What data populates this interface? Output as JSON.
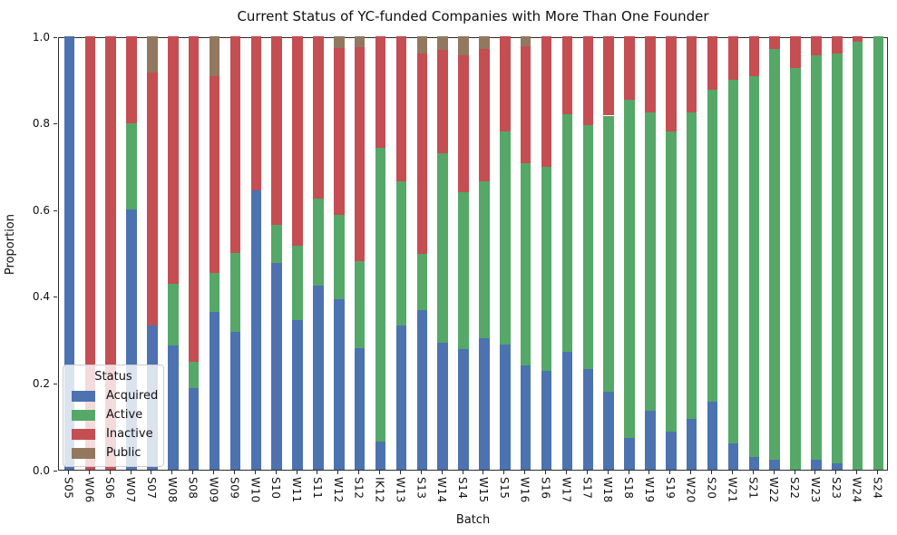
{
  "chart_data": {
    "type": "bar",
    "stacked": true,
    "normalized": true,
    "grid": false,
    "title": "Current Status of YC-funded Companies with More Than One Founder",
    "xlabel": "Batch",
    "ylabel": "Proportion",
    "ylim": [
      0,
      1.0
    ],
    "yticks": [
      0.0,
      0.2,
      0.4,
      0.6,
      0.8,
      1.0
    ],
    "legend": {
      "title": "Status",
      "position": "lower-left",
      "entries": [
        {
          "label": "Acquired",
          "color": "#4C72B0"
        },
        {
          "label": "Active",
          "color": "#55A868"
        },
        {
          "label": "Inactive",
          "color": "#C44E52"
        },
        {
          "label": "Public",
          "color": "#937860"
        }
      ]
    },
    "categories": [
      "S05",
      "W06",
      "S06",
      "W07",
      "S07",
      "W08",
      "S08",
      "W09",
      "S09",
      "W10",
      "S10",
      "W11",
      "S11",
      "W12",
      "S12",
      "IK12",
      "W13",
      "S13",
      "W14",
      "S14",
      "W15",
      "S15",
      "W16",
      "S16",
      "W17",
      "S17",
      "W18",
      "S18",
      "W19",
      "S19",
      "W20",
      "S20",
      "W21",
      "S21",
      "W22",
      "S22",
      "W23",
      "S23",
      "W24",
      "S24"
    ],
    "series": [
      {
        "name": "Acquired",
        "color": "#4C72B0",
        "values": [
          1.0,
          0,
          0,
          0.6,
          0.333,
          0.286,
          0.188,
          0.364,
          0.318,
          0.645,
          0.478,
          0.345,
          0.425,
          0.393,
          0.281,
          0.065,
          0.333,
          0.368,
          0.293,
          0.279,
          0.304,
          0.288,
          0.24,
          0.229,
          0.271,
          0.232,
          0.179,
          0.073,
          0.137,
          0.088,
          0.117,
          0.156,
          0.061,
          0.029,
          0.022,
          0,
          0.022,
          0.014,
          0,
          0
        ]
      },
      {
        "name": "Active",
        "color": "#55A868",
        "values": [
          0,
          0,
          0,
          0.2,
          0,
          0.143,
          0.062,
          0.091,
          0.182,
          0,
          0.087,
          0.172,
          0.2,
          0.194,
          0.2,
          0.677,
          0.333,
          0.13,
          0.438,
          0.362,
          0.362,
          0.493,
          0.468,
          0.469,
          0.549,
          0.563,
          0.638,
          0.78,
          0.687,
          0.692,
          0.707,
          0.72,
          0.838,
          0.878,
          0.949,
          0.926,
          0.935,
          0.946,
          0.988,
          1.0
        ]
      },
      {
        "name": "Inactive",
        "color": "#C44E52",
        "values": [
          0,
          1.0,
          1.0,
          0.2,
          0.584,
          0.571,
          0.75,
          0.454,
          0.5,
          0.355,
          0.435,
          0.483,
          0.375,
          0.386,
          0.493,
          0.258,
          0.334,
          0.462,
          0.237,
          0.316,
          0.305,
          0.219,
          0.27,
          0.302,
          0.18,
          0.205,
          0.183,
          0.147,
          0.176,
          0.22,
          0.176,
          0.124,
          0.101,
          0.093,
          0.029,
          0.074,
          0.043,
          0.04,
          0.012,
          0
        ]
      },
      {
        "name": "Public",
        "color": "#937860",
        "values": [
          0,
          0,
          0,
          0,
          0.083,
          0,
          0,
          0.091,
          0,
          0,
          0,
          0,
          0,
          0.027,
          0.026,
          0,
          0,
          0.04,
          0.032,
          0.043,
          0.029,
          0,
          0.022,
          0,
          0,
          0,
          0,
          0,
          0,
          0,
          0,
          0,
          0,
          0,
          0,
          0,
          0,
          0,
          0,
          0
        ]
      }
    ]
  }
}
